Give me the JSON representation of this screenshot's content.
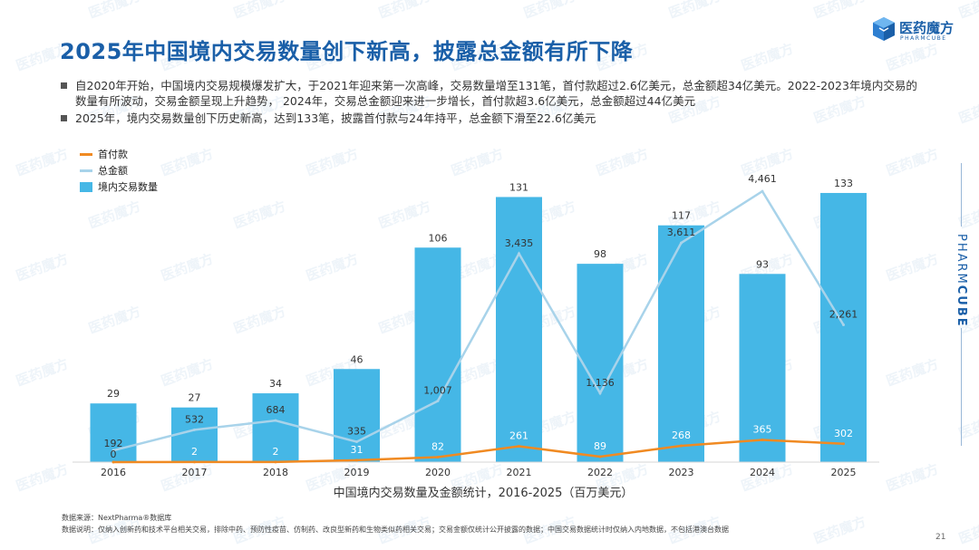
{
  "header": {
    "title": "2025年中国境内交易数量创下新高，披露总金额有所下降",
    "logo_text": "医药魔方",
    "logo_sub": "PHARMCUBE"
  },
  "bullets": [
    "自2020年开始，中国境内交易规模爆发扩大，于2021年迎来第一次高峰，交易数量增至131笔，首付款超过2.6亿美元，总金额超34亿美元。2022-2023年境内交易的数量有所波动，交易金额呈现上升趋势， 2024年，交易总金额迎来进一步增长，首付款超3.6亿美元，总金额超过44亿美元",
    "2025年，境内交易数量创下历史新高，达到133笔，披露首付款与24年持平，总金额下滑至22.6亿美元"
  ],
  "side_brand": {
    "light": "PHARM",
    "bold": "CUBE"
  },
  "colors": {
    "bars": "#45b7e6",
    "upfront": "#f08a22",
    "total": "#a8d3ea",
    "title": "#1a5fa8"
  },
  "chart_data": {
    "type": "bar",
    "categories": [
      "2016",
      "2017",
      "2018",
      "2019",
      "2020",
      "2021",
      "2022",
      "2023",
      "2024",
      "2025"
    ],
    "series": [
      {
        "name": "境内交易数量",
        "type": "bar",
        "values": [
          29,
          27,
          34,
          46,
          106,
          131,
          98,
          117,
          93,
          133
        ]
      },
      {
        "name": "总金额",
        "type": "line",
        "values": [
          192,
          532,
          684,
          335,
          1007,
          3435,
          1136,
          3611,
          4461,
          2261
        ]
      },
      {
        "name": "首付款",
        "type": "line",
        "values": [
          0,
          2,
          2,
          31,
          82,
          261,
          89,
          268,
          365,
          302
        ]
      }
    ],
    "title": "",
    "xlabel": "中国境内交易数量及金额统计，2016-2025（百万美元）",
    "ylabel": "",
    "ylim_bars": [
      0,
      150
    ],
    "ylim_amount": [
      0,
      5000
    ],
    "legend": {
      "placement": "top-left",
      "order": [
        "首付款",
        "总金额",
        "境内交易数量"
      ]
    },
    "grid": false
  },
  "footer": {
    "source": "数据来源：NextPharma®数据库",
    "note": "数据说明：仅纳入创新药和技术平台相关交易，排除中药、预防性疫苗、仿制药、改良型新药和生物类似药相关交易；交易金额仅统计公开披露的数据；中国交易数据统计时仅纳入内地数据，不包括港澳台数据",
    "page_number": "21"
  }
}
